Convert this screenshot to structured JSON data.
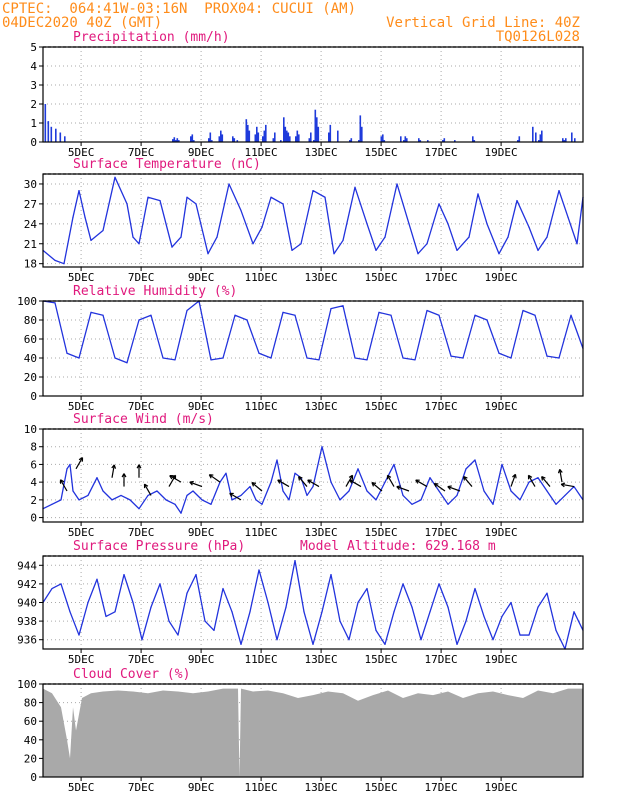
{
  "header": {
    "line1_left": "CPTEC:  064:41W-03:16N  PROX04: CUCUI (AM)",
    "line2_left": "04DEC2020 40Z (GMT)",
    "line2_right": "Vertical Grid Line: 40Z",
    "line3_right": "TQ0126L028"
  },
  "x_tick_labels": [
    "5DEC",
    "7DEC",
    "9DEC",
    "11DEC",
    "13DEC",
    "15DEC",
    "17DEC",
    "19DEC"
  ],
  "colors": {
    "title": "#e0197d",
    "header": "#ff8c1a",
    "line": "#2233dd",
    "bar": "#1f3bdb",
    "cloud": "#a9a9a9"
  },
  "chart_data": [
    {
      "type": "bar",
      "title": "Precipitation (mm/h)",
      "ylim": [
        0,
        5
      ],
      "yticks": [
        0,
        1,
        2,
        3,
        4,
        5
      ],
      "x": [
        0.05,
        0.15,
        0.25,
        0.4,
        0.55,
        0.7,
        4.3,
        4.35,
        4.4,
        4.45,
        4.5,
        4.9,
        4.95,
        5.0,
        5.5,
        5.55,
        5.6,
        5.85,
        5.9,
        5.95,
        6.3,
        6.35,
        6.45,
        6.75,
        6.8,
        6.85,
        7.05,
        7.1,
        7.15,
        7.3,
        7.35,
        7.4,
        7.65,
        7.7,
        7.9,
        8.0,
        8.05,
        8.1,
        8.15,
        8.2,
        8.4,
        8.45,
        8.5,
        8.85,
        8.9,
        9.0,
        9.05,
        9.1,
        9.15,
        9.5,
        9.55,
        9.8,
        10.2,
        10.25,
        10.5,
        10.55,
        10.6,
        11.25,
        11.3,
        11.35,
        11.9,
        12.0,
        12.05,
        12.1,
        12.5,
        12.55,
        12.8,
        13.3,
        13.35,
        13.7,
        14.3,
        14.35,
        15.8,
        15.85,
        16.3,
        16.4,
        16.5,
        16.55,
        16.6,
        17.3,
        17.35,
        17.4,
        17.6,
        17.7
      ],
      "values": [
        2.0,
        1.1,
        0.8,
        0.7,
        0.5,
        0.3,
        0.15,
        0.25,
        0.1,
        0.2,
        0.1,
        0.3,
        0.4,
        0.1,
        0.2,
        0.5,
        0.1,
        0.3,
        0.6,
        0.4,
        0.3,
        0.2,
        0.1,
        1.2,
        0.9,
        0.6,
        0.4,
        0.8,
        0.5,
        0.3,
        0.6,
        0.9,
        0.2,
        0.5,
        0.1,
        1.3,
        0.8,
        0.6,
        0.5,
        0.3,
        0.3,
        0.6,
        0.4,
        0.2,
        0.5,
        0.1,
        1.7,
        1.3,
        0.8,
        0.5,
        0.9,
        0.6,
        0.1,
        0.2,
        0.1,
        1.4,
        0.8,
        0.3,
        0.4,
        0.1,
        0.3,
        0.1,
        0.3,
        0.2,
        0.2,
        0.1,
        0.1,
        0.1,
        0.2,
        0.1,
        0.3,
        0.1,
        0.1,
        0.3,
        0.8,
        0.5,
        0.1,
        0.4,
        0.6,
        0.2,
        0.1,
        0.2,
        0.5,
        0.2
      ]
    },
    {
      "type": "line",
      "title": "Surface Temperature (nC)",
      "ylim": [
        17.5,
        31.5
      ],
      "yticks": [
        18,
        21,
        24,
        27,
        30
      ],
      "x": [
        0.0,
        0.4,
        0.7,
        1.0,
        1.2,
        1.4,
        1.6,
        2.0,
        2.4,
        2.8,
        3.0,
        3.2,
        3.5,
        3.9,
        4.3,
        4.6,
        4.8,
        5.1,
        5.5,
        5.8,
        6.2,
        6.6,
        7.0,
        7.3,
        7.6,
        8.0,
        8.3,
        8.6,
        9.0,
        9.4,
        9.7,
        10.0,
        10.4,
        10.8,
        11.1,
        11.4,
        11.8,
        12.2,
        12.5,
        12.8,
        13.2,
        13.5,
        13.8,
        14.2,
        14.5,
        14.8,
        15.2,
        15.5,
        15.8,
        16.2,
        16.5,
        16.8,
        17.2,
        17.5,
        17.8,
        18.0
      ],
      "values": [
        20.0,
        18.5,
        18.0,
        25.0,
        29.0,
        25.0,
        21.5,
        23.0,
        31.0,
        27.0,
        22.0,
        21.0,
        28.0,
        27.5,
        20.5,
        22.0,
        28.0,
        27.0,
        19.5,
        22.0,
        30.0,
        26.0,
        21.0,
        23.5,
        28.0,
        27.0,
        20.0,
        21.0,
        29.0,
        28.0,
        19.5,
        21.5,
        29.5,
        24.0,
        20.0,
        22.0,
        30.0,
        24.0,
        19.5,
        21.0,
        27.0,
        24.0,
        20.0,
        22.0,
        28.5,
        24.0,
        19.5,
        22.0,
        27.5,
        23.5,
        20.0,
        22.0,
        29.0,
        25.0,
        21.0,
        28.0
      ]
    },
    {
      "type": "line",
      "title": "Relative Humidity (%)",
      "ylim": [
        0,
        100
      ],
      "yticks": [
        0,
        20,
        40,
        60,
        80,
        100
      ],
      "x": [
        0.0,
        0.4,
        0.8,
        1.2,
        1.6,
        2.0,
        2.4,
        2.8,
        3.2,
        3.6,
        4.0,
        4.4,
        4.8,
        5.2,
        5.6,
        6.0,
        6.4,
        6.8,
        7.2,
        7.6,
        8.0,
        8.4,
        8.8,
        9.2,
        9.6,
        10.0,
        10.4,
        10.8,
        11.2,
        11.6,
        12.0,
        12.4,
        12.8,
        13.2,
        13.6,
        14.0,
        14.4,
        14.8,
        15.2,
        15.6,
        16.0,
        16.4,
        16.8,
        17.2,
        17.6,
        18.0
      ],
      "values": [
        100,
        98,
        45,
        40,
        88,
        85,
        40,
        35,
        80,
        85,
        40,
        38,
        90,
        100,
        38,
        40,
        85,
        80,
        45,
        40,
        88,
        85,
        40,
        38,
        92,
        95,
        40,
        38,
        88,
        85,
        40,
        38,
        90,
        85,
        42,
        40,
        85,
        80,
        45,
        40,
        90,
        85,
        42,
        40,
        85,
        50
      ]
    },
    {
      "type": "line",
      "title": "Surface Wind (m/s)",
      "ylim": [
        -0.5,
        10
      ],
      "yticks": [
        0,
        2,
        4,
        6,
        8,
        10
      ],
      "x": [
        0.0,
        0.3,
        0.6,
        0.8,
        0.9,
        1.0,
        1.2,
        1.5,
        1.8,
        2.0,
        2.3,
        2.6,
        2.9,
        3.2,
        3.5,
        3.8,
        4.1,
        4.4,
        4.6,
        4.8,
        5.0,
        5.3,
        5.6,
        5.9,
        6.1,
        6.3,
        6.6,
        6.9,
        7.1,
        7.3,
        7.6,
        7.8,
        8.0,
        8.2,
        8.4,
        8.6,
        8.8,
        9.0,
        9.3,
        9.6,
        9.9,
        10.2,
        10.5,
        10.8,
        11.1,
        11.4,
        11.7,
        12.0,
        12.3,
        12.6,
        12.9,
        13.2,
        13.5,
        13.8,
        14.1,
        14.4,
        14.7,
        15.0,
        15.3,
        15.6,
        15.9,
        16.2,
        16.5,
        16.8,
        17.1,
        17.4,
        17.7,
        18.0
      ],
      "values": [
        1.0,
        1.5,
        2.0,
        5.5,
        6.0,
        3.0,
        2.0,
        2.5,
        4.5,
        3.0,
        2.0,
        2.5,
        2.0,
        1.0,
        2.5,
        3.0,
        2.0,
        1.5,
        0.5,
        2.5,
        3.0,
        2.0,
        1.5,
        4.0,
        5.0,
        2.0,
        2.5,
        3.5,
        2.0,
        1.5,
        4.0,
        6.5,
        3.0,
        2.0,
        5.0,
        4.5,
        2.5,
        3.5,
        8.0,
        4.0,
        2.0,
        3.0,
        5.5,
        3.0,
        2.0,
        4.0,
        6.0,
        2.5,
        1.5,
        2.0,
        4.5,
        3.0,
        1.5,
        2.5,
        5.5,
        6.5,
        3.0,
        1.5,
        6.0,
        3.0,
        2.0,
        4.0,
        4.5,
        3.0,
        1.5,
        2.5,
        3.5,
        2.0
      ],
      "arrows": [
        {
          "x": 0.8,
          "y": 3.0,
          "dir": -120
        },
        {
          "x": 1.1,
          "y": 5.5,
          "dir": -60
        },
        {
          "x": 2.3,
          "y": 4.5,
          "dir": -80
        },
        {
          "x": 2.7,
          "y": 3.5,
          "dir": -90
        },
        {
          "x": 3.2,
          "y": 4.5,
          "dir": -90
        },
        {
          "x": 3.6,
          "y": 2.5,
          "dir": -120
        },
        {
          "x": 4.2,
          "y": 3.5,
          "dir": -60
        },
        {
          "x": 4.6,
          "y": 4.0,
          "dir": -150
        },
        {
          "x": 5.3,
          "y": 3.5,
          "dir": -160
        },
        {
          "x": 5.9,
          "y": 4.0,
          "dir": -145
        },
        {
          "x": 6.6,
          "y": 2.0,
          "dir": -150
        },
        {
          "x": 7.3,
          "y": 3.0,
          "dir": -140
        },
        {
          "x": 8.2,
          "y": 3.5,
          "dir": -150
        },
        {
          "x": 8.8,
          "y": 3.5,
          "dir": -130
        },
        {
          "x": 9.2,
          "y": 3.5,
          "dir": -150
        },
        {
          "x": 10.1,
          "y": 3.5,
          "dir": -60
        },
        {
          "x": 10.6,
          "y": 3.5,
          "dir": -150
        },
        {
          "x": 11.3,
          "y": 3.0,
          "dir": -140
        },
        {
          "x": 11.7,
          "y": 3.5,
          "dir": -120
        },
        {
          "x": 12.2,
          "y": 3.0,
          "dir": -160
        },
        {
          "x": 12.8,
          "y": 3.5,
          "dir": -150
        },
        {
          "x": 13.4,
          "y": 3.0,
          "dir": -145
        },
        {
          "x": 13.9,
          "y": 3.0,
          "dir": -160
        },
        {
          "x": 14.3,
          "y": 3.5,
          "dir": -130
        },
        {
          "x": 15.6,
          "y": 3.5,
          "dir": -70
        },
        {
          "x": 16.4,
          "y": 3.5,
          "dir": -120
        },
        {
          "x": 16.9,
          "y": 3.5,
          "dir": -130
        },
        {
          "x": 17.3,
          "y": 4.0,
          "dir": -100
        },
        {
          "x": 17.7,
          "y": 3.5,
          "dir": -170
        }
      ]
    },
    {
      "type": "line",
      "title": "Surface Pressure (hPa)",
      "subtitle": "Model Altitude: 629.168 m",
      "ylim": [
        935,
        945
      ],
      "yticks": [
        936,
        938,
        940,
        942,
        944
      ],
      "x": [
        0.0,
        0.3,
        0.6,
        0.9,
        1.2,
        1.5,
        1.8,
        2.1,
        2.4,
        2.7,
        3.0,
        3.3,
        3.6,
        3.9,
        4.2,
        4.5,
        4.8,
        5.1,
        5.4,
        5.7,
        6.0,
        6.3,
        6.6,
        6.9,
        7.2,
        7.5,
        7.8,
        8.1,
        8.4,
        8.7,
        9.0,
        9.3,
        9.6,
        9.9,
        10.2,
        10.5,
        10.8,
        11.1,
        11.4,
        11.7,
        12.0,
        12.3,
        12.6,
        12.9,
        13.2,
        13.5,
        13.8,
        14.1,
        14.4,
        14.7,
        15.0,
        15.3,
        15.6,
        15.9,
        16.2,
        16.5,
        16.8,
        17.1,
        17.4,
        17.7,
        18.0
      ],
      "values": [
        940.0,
        941.5,
        942.0,
        939.0,
        936.5,
        940.0,
        942.5,
        938.5,
        939.0,
        943.0,
        940.0,
        936.0,
        939.5,
        942.0,
        938.0,
        936.5,
        941.0,
        943.0,
        938.0,
        937.0,
        941.5,
        939.0,
        935.5,
        939.0,
        943.5,
        940.0,
        936.0,
        939.5,
        944.5,
        939.0,
        935.5,
        939.0,
        943.0,
        938.0,
        936.0,
        940.0,
        941.5,
        937.0,
        935.5,
        939.0,
        942.0,
        939.5,
        936.0,
        939.0,
        942.0,
        939.5,
        935.5,
        938.0,
        941.5,
        938.5,
        936.0,
        938.5,
        940.0,
        936.5,
        936.5,
        939.5,
        941.0,
        937.0,
        935.0,
        939.0,
        937.0
      ]
    },
    {
      "type": "area",
      "title": "Cloud Cover (%)",
      "ylim": [
        0,
        100
      ],
      "yticks": [
        0,
        20,
        40,
        60,
        80,
        100
      ],
      "x": [
        0.0,
        0.3,
        0.6,
        0.8,
        0.9,
        1.0,
        1.1,
        1.3,
        1.6,
        2.0,
        2.5,
        3.0,
        3.5,
        4.0,
        4.5,
        5.0,
        5.5,
        6.0,
        6.5,
        6.55,
        6.6,
        7.0,
        7.5,
        8.0,
        8.5,
        9.0,
        9.5,
        10.0,
        10.5,
        11.0,
        11.5,
        12.0,
        12.5,
        13.0,
        13.5,
        14.0,
        14.5,
        15.0,
        15.5,
        16.0,
        16.5,
        17.0,
        17.5,
        18.0
      ],
      "values": [
        95,
        90,
        75,
        40,
        20,
        75,
        50,
        85,
        90,
        92,
        93,
        92,
        90,
        93,
        92,
        90,
        92,
        95,
        95,
        0,
        95,
        92,
        93,
        90,
        85,
        88,
        92,
        90,
        82,
        88,
        93,
        85,
        90,
        88,
        92,
        85,
        90,
        92,
        88,
        85,
        93,
        90,
        95,
        95
      ]
    }
  ]
}
